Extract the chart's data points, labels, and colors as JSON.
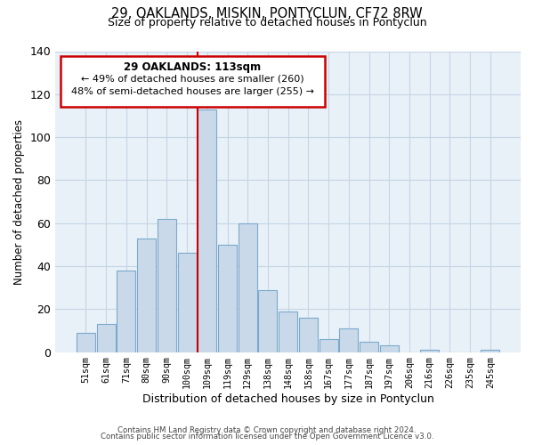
{
  "title": "29, OAKLANDS, MISKIN, PONTYCLUN, CF72 8RW",
  "subtitle": "Size of property relative to detached houses in Pontyclun",
  "xlabel": "Distribution of detached houses by size in Pontyclun",
  "ylabel": "Number of detached properties",
  "bar_labels": [
    "51sqm",
    "61sqm",
    "71sqm",
    "80sqm",
    "90sqm",
    "100sqm",
    "109sqm",
    "119sqm",
    "129sqm",
    "138sqm",
    "148sqm",
    "158sqm",
    "167sqm",
    "177sqm",
    "187sqm",
    "197sqm",
    "206sqm",
    "216sqm",
    "226sqm",
    "235sqm",
    "245sqm"
  ],
  "bar_values": [
    9,
    13,
    38,
    53,
    62,
    46,
    113,
    50,
    60,
    29,
    19,
    16,
    6,
    11,
    5,
    3,
    0,
    1,
    0,
    0,
    1
  ],
  "bar_color": "#c9d9ea",
  "bar_edge_color": "#7aaacb",
  "highlight_bar_index": 6,
  "highlight_line_color": "#cc0000",
  "ylim": [
    0,
    140
  ],
  "yticks": [
    0,
    20,
    40,
    60,
    80,
    100,
    120,
    140
  ],
  "annotation_title": "29 OAKLANDS: 113sqm",
  "annotation_line1": "← 49% of detached houses are smaller (260)",
  "annotation_line2": "48% of semi-detached houses are larger (255) →",
  "footer1": "Contains HM Land Registry data © Crown copyright and database right 2024.",
  "footer2": "Contains public sector information licensed under the Open Government Licence v3.0.",
  "background_color": "#ffffff",
  "plot_bg_color": "#e8f0f8",
  "grid_color": "#c5d5e5"
}
